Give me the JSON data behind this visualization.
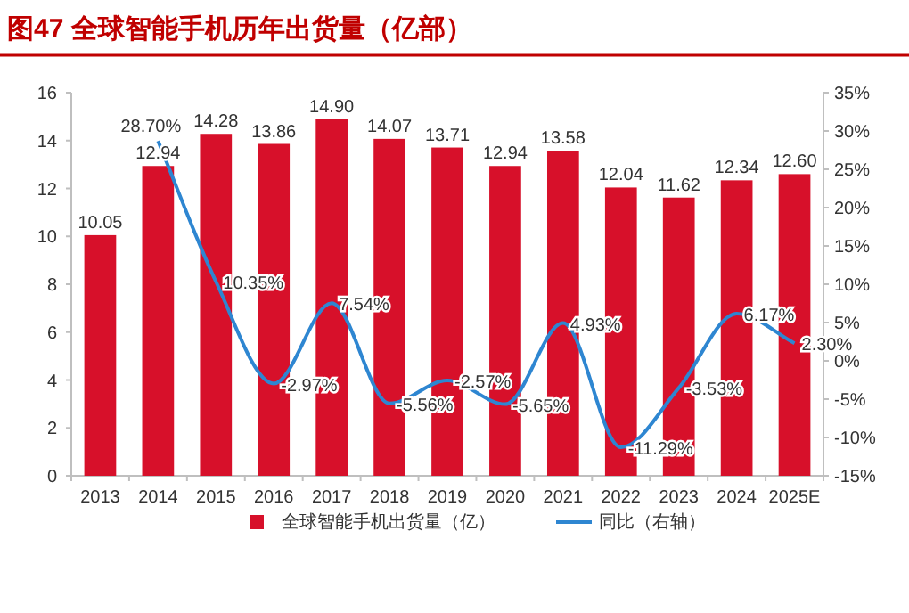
{
  "chart_data": {
    "type": "bar",
    "title": "图47  全球智能手机历年出货量（亿部）",
    "categories": [
      "2013",
      "2014",
      "2015",
      "2016",
      "2017",
      "2018",
      "2019",
      "2020",
      "2021",
      "2022",
      "2023",
      "2024",
      "2025E"
    ],
    "series": [
      {
        "name": "全球智能手机出货量（亿）",
        "color": "#d7102a",
        "values": [
          10.05,
          12.94,
          14.28,
          13.86,
          14.9,
          14.07,
          13.71,
          12.94,
          13.58,
          12.04,
          11.62,
          12.34,
          12.6
        ],
        "value_labels": [
          "10.05",
          "12.94",
          "14.28",
          "13.86",
          "14.90",
          "14.07",
          "13.71",
          "12.94",
          "13.58",
          "12.04",
          "11.62",
          "12.34",
          "12.60"
        ]
      },
      {
        "name": "同比（右轴）",
        "type": "line",
        "axis": "y2",
        "color": "#2e86d1",
        "values": [
          null,
          28.7,
          10.35,
          -2.97,
          7.54,
          -5.56,
          -2.57,
          -5.65,
          4.93,
          -11.29,
          -3.53,
          6.17,
          2.3
        ],
        "value_labels": [
          null,
          "28.70%",
          "10.35%",
          "-2.97%",
          "7.54%",
          "-5.56%",
          "-2.57%",
          "-5.65%",
          "4.93%",
          "-11.29%",
          "-3.53%",
          "6.17%",
          "2.30%"
        ]
      }
    ],
    "ylim": [
      0,
      16
    ],
    "yticks": [
      0,
      2,
      4,
      6,
      8,
      10,
      12,
      14,
      16
    ],
    "y2lim": [
      -15,
      35
    ],
    "y2ticks": [
      {
        "value": -15,
        "label": "-15%"
      },
      {
        "value": -10,
        "label": "-10%"
      },
      {
        "value": -5,
        "label": "-5%"
      },
      {
        "value": 0,
        "label": "0%"
      },
      {
        "value": 5,
        "label": "5%"
      },
      {
        "value": 10,
        "label": "10%"
      },
      {
        "value": 15,
        "label": "15%"
      },
      {
        "value": 20,
        "label": "20%"
      },
      {
        "value": 25,
        "label": "25%"
      },
      {
        "value": 30,
        "label": "30%"
      },
      {
        "value": 35,
        "label": "35%"
      }
    ],
    "legend": "bottom",
    "grid": false,
    "marker": "none",
    "line_style": "solid"
  }
}
